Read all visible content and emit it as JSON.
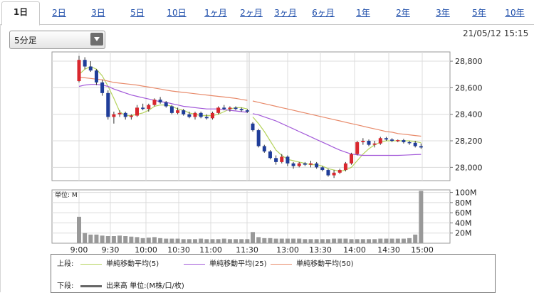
{
  "tabs": [
    {
      "label": "1日",
      "active": true
    },
    {
      "label": "2日",
      "active": false
    },
    {
      "label": "3日",
      "active": false
    },
    {
      "label": "5日",
      "active": false
    },
    {
      "label": "10日",
      "active": false
    },
    {
      "label": "1ヶ月",
      "active": false
    },
    {
      "label": "2ヶ月",
      "active": false
    },
    {
      "label": "3ヶ月",
      "active": false
    },
    {
      "label": "6ヶ月",
      "active": false
    },
    {
      "label": "1年",
      "active": false
    },
    {
      "label": "2年",
      "active": false
    },
    {
      "label": "3年",
      "active": false
    },
    {
      "label": "5年",
      "active": false
    },
    {
      "label": "10年",
      "active": false
    }
  ],
  "interval_select": {
    "value": "5分足"
  },
  "timestamp": "21/05/12 15:15",
  "legend": {
    "upper_label": "上段:",
    "lower_label": "下段:",
    "items": [
      {
        "label": "単純移動平均(5)",
        "color": "#b5d35c"
      },
      {
        "label": "単純移動平均(25)",
        "color": "#a35ad9"
      },
      {
        "label": "単純移動平均(50)",
        "color": "#e88a6a"
      }
    ],
    "volume_label": "出来高 単位:(M株/口/枚)",
    "volume_color": "#666666"
  },
  "chart_data": [
    {
      "type": "candlestick",
      "title": "",
      "y_ticks": [
        "28,800",
        "28,600",
        "28,400",
        "28,200",
        "28,000"
      ],
      "ylim": [
        27900,
        28870
      ],
      "x_ticks": [
        "9:00",
        "9:30",
        "10:00",
        "10:30",
        "11:00",
        "11:30",
        "13:00",
        "13:30",
        "14:00",
        "14:30",
        "15:00"
      ],
      "colors": {
        "up": "#d9272e",
        "down": "#1f3d99"
      },
      "sessions": [
        {
          "name": "morning",
          "candles": [
            {
              "o": 28650,
              "h": 28840,
              "l": 28640,
              "c": 28810
            },
            {
              "o": 28810,
              "h": 28830,
              "l": 28740,
              "c": 28760
            },
            {
              "o": 28760,
              "h": 28800,
              "l": 28720,
              "c": 28730
            },
            {
              "o": 28730,
              "h": 28740,
              "l": 28620,
              "c": 28640
            },
            {
              "o": 28640,
              "h": 28660,
              "l": 28540,
              "c": 28560
            },
            {
              "o": 28560,
              "h": 28580,
              "l": 28360,
              "c": 28380
            },
            {
              "o": 28380,
              "h": 28420,
              "l": 28330,
              "c": 28400
            },
            {
              "o": 28400,
              "h": 28430,
              "l": 28380,
              "c": 28410
            },
            {
              "o": 28410,
              "h": 28420,
              "l": 28360,
              "c": 28380
            },
            {
              "o": 28380,
              "h": 28400,
              "l": 28360,
              "c": 28390
            },
            {
              "o": 28390,
              "h": 28470,
              "l": 28380,
              "c": 28450
            },
            {
              "o": 28450,
              "h": 28480,
              "l": 28430,
              "c": 28440
            },
            {
              "o": 28440,
              "h": 28480,
              "l": 28420,
              "c": 28470
            },
            {
              "o": 28470,
              "h": 28520,
              "l": 28460,
              "c": 28510
            },
            {
              "o": 28510,
              "h": 28530,
              "l": 28480,
              "c": 28490
            },
            {
              "o": 28490,
              "h": 28500,
              "l": 28450,
              "c": 28460
            },
            {
              "o": 28460,
              "h": 28470,
              "l": 28400,
              "c": 28410
            },
            {
              "o": 28410,
              "h": 28450,
              "l": 28400,
              "c": 28430
            },
            {
              "o": 28430,
              "h": 28440,
              "l": 28390,
              "c": 28400
            },
            {
              "o": 28400,
              "h": 28420,
              "l": 28370,
              "c": 28380
            },
            {
              "o": 28380,
              "h": 28420,
              "l": 28360,
              "c": 28410
            },
            {
              "o": 28410,
              "h": 28420,
              "l": 28370,
              "c": 28380
            },
            {
              "o": 28380,
              "h": 28400,
              "l": 28360,
              "c": 28370
            },
            {
              "o": 28370,
              "h": 28420,
              "l": 28360,
              "c": 28410
            },
            {
              "o": 28410,
              "h": 28460,
              "l": 28400,
              "c": 28450
            },
            {
              "o": 28450,
              "h": 28470,
              "l": 28430,
              "c": 28440
            },
            {
              "o": 28440,
              "h": 28460,
              "l": 28420,
              "c": 28450
            },
            {
              "o": 28450,
              "h": 28460,
              "l": 28430,
              "c": 28440
            },
            {
              "o": 28440,
              "h": 28450,
              "l": 28420,
              "c": 28430
            },
            {
              "o": 28430,
              "h": 28440,
              "l": 28410,
              "c": 28420
            }
          ]
        },
        {
          "name": "afternoon",
          "candles": [
            {
              "o": 28330,
              "h": 28340,
              "l": 28270,
              "c": 28280
            },
            {
              "o": 28280,
              "h": 28290,
              "l": 28150,
              "c": 28160
            },
            {
              "o": 28160,
              "h": 28170,
              "l": 28110,
              "c": 28120
            },
            {
              "o": 28120,
              "h": 28130,
              "l": 28060,
              "c": 28070
            },
            {
              "o": 28070,
              "h": 28090,
              "l": 28020,
              "c": 28040
            },
            {
              "o": 28040,
              "h": 28100,
              "l": 28030,
              "c": 28080
            },
            {
              "o": 28080,
              "h": 28090,
              "l": 28010,
              "c": 28030
            },
            {
              "o": 28030,
              "h": 28040,
              "l": 27990,
              "c": 28010
            },
            {
              "o": 28010,
              "h": 28040,
              "l": 28000,
              "c": 28030
            },
            {
              "o": 28030,
              "h": 28040,
              "l": 28010,
              "c": 28020
            },
            {
              "o": 28020,
              "h": 28050,
              "l": 28000,
              "c": 28030
            },
            {
              "o": 28030,
              "h": 28040,
              "l": 27990,
              "c": 28000
            },
            {
              "o": 28000,
              "h": 28010,
              "l": 27970,
              "c": 27980
            },
            {
              "o": 27980,
              "h": 27990,
              "l": 27930,
              "c": 27940
            },
            {
              "o": 27940,
              "h": 27980,
              "l": 27920,
              "c": 27960
            },
            {
              "o": 27960,
              "h": 27990,
              "l": 27950,
              "c": 27980
            },
            {
              "o": 27980,
              "h": 28040,
              "l": 27970,
              "c": 28030
            },
            {
              "o": 28030,
              "h": 28110,
              "l": 28020,
              "c": 28100
            },
            {
              "o": 28100,
              "h": 28200,
              "l": 28090,
              "c": 28190
            },
            {
              "o": 28190,
              "h": 28220,
              "l": 28170,
              "c": 28200
            },
            {
              "o": 28200,
              "h": 28210,
              "l": 28160,
              "c": 28170
            },
            {
              "o": 28170,
              "h": 28200,
              "l": 28150,
              "c": 28180
            },
            {
              "o": 28180,
              "h": 28230,
              "l": 28170,
              "c": 28220
            },
            {
              "o": 28220,
              "h": 28230,
              "l": 28200,
              "c": 28210
            },
            {
              "o": 28210,
              "h": 28220,
              "l": 28190,
              "c": 28200
            },
            {
              "o": 28200,
              "h": 28210,
              "l": 28190,
              "c": 28205
            },
            {
              "o": 28205,
              "h": 28215,
              "l": 28180,
              "c": 28190
            },
            {
              "o": 28190,
              "h": 28200,
              "l": 28170,
              "c": 28185
            },
            {
              "o": 28185,
              "h": 28200,
              "l": 28150,
              "c": 28160
            },
            {
              "o": 28160,
              "h": 28180,
              "l": 28140,
              "c": 28150
            }
          ]
        }
      ],
      "moving_averages": [
        {
          "name": "単純移動平均(5)",
          "color": "#b5d35c",
          "values": [
            [
              28700,
              28740,
              28760,
              28740,
              28690,
              28610,
              28520,
              28420,
              28390,
              28390,
              28400,
              28410,
              28430,
              28460,
              28470,
              28470,
              28460,
              28440,
              28430,
              28410,
              28400,
              28390,
              28390,
              28390,
              28400,
              28420,
              28440,
              28450,
              28450,
              28440
            ],
            [
              28380,
              28330,
              28270,
              28200,
              28130,
              28090,
              28060,
              28050,
              28040,
              28030,
              28020,
              28020,
              28010,
              27990,
              27980,
              27970,
              27980,
              28000,
              28050,
              28100,
              28140,
              28170,
              28190,
              28200,
              28200,
              28200,
              28200,
              28200,
              28195,
              28185
            ]
          ]
        },
        {
          "name": "単純移動平均(25)",
          "color": "#a35ad9",
          "values": [
            [
              28610,
              28620,
              28625,
              28625,
              28620,
              28610,
              28590,
              28575,
              28560,
              28545,
              28535,
              28525,
              28515,
              28505,
              28495,
              28490,
              28480,
              28470,
              28460,
              28455,
              28450,
              28445,
              28440,
              28440,
              28440,
              28435,
              28430,
              28425,
              28420,
              28415
            ],
            [
              28405,
              28395,
              28380,
              28365,
              28350,
              28330,
              28310,
              28290,
              28270,
              28250,
              28230,
              28210,
              28190,
              28170,
              28150,
              28130,
              28115,
              28100,
              28095,
              28090,
              28090,
              28090,
              28090,
              28090,
              28090,
              28090,
              28092,
              28094,
              28096,
              28098
            ]
          ]
        },
        {
          "name": "単純移動平均(50)",
          "color": "#e88a6a",
          "values": [
            [
              28680,
              28675,
              28670,
              28665,
              28660,
              28650,
              28640,
              28635,
              28630,
              28625,
              28620,
              28612,
              28605,
              28598,
              28590,
              28582,
              28575,
              28570,
              28565,
              28560,
              28555,
              28550,
              28545,
              28540,
              28535,
              28530,
              28525,
              28520,
              28512,
              28505
            ],
            [
              28500,
              28490,
              28480,
              28470,
              28460,
              28450,
              28440,
              28430,
              28420,
              28410,
              28400,
              28390,
              28380,
              28370,
              28360,
              28350,
              28340,
              28330,
              28320,
              28310,
              28300,
              28290,
              28280,
              28270,
              28265,
              28255,
              28250,
              28245,
              28240,
              28235
            ]
          ]
        }
      ]
    },
    {
      "type": "bar",
      "title": "",
      "unit_label": "単位: M",
      "y_ticks": [
        "100M",
        "80M",
        "60M",
        "40M",
        "20M"
      ],
      "ylim": [
        0,
        105
      ],
      "color": "#999999",
      "sessions": [
        {
          "name": "morning",
          "values": [
            52,
            20,
            17,
            17,
            15,
            14,
            14,
            15,
            14,
            13,
            12,
            10,
            11,
            12,
            10,
            9,
            9,
            9,
            8,
            8,
            8,
            9,
            8,
            8,
            8,
            9,
            8,
            8,
            8,
            8
          ]
        },
        {
          "name": "afternoon",
          "values": [
            22,
            12,
            10,
            10,
            9,
            9,
            9,
            9,
            9,
            8,
            8,
            8,
            8,
            8,
            9,
            9,
            9,
            8,
            8,
            8,
            8,
            8,
            9,
            9,
            9,
            9,
            9,
            10,
            17,
            103
          ]
        }
      ]
    }
  ]
}
